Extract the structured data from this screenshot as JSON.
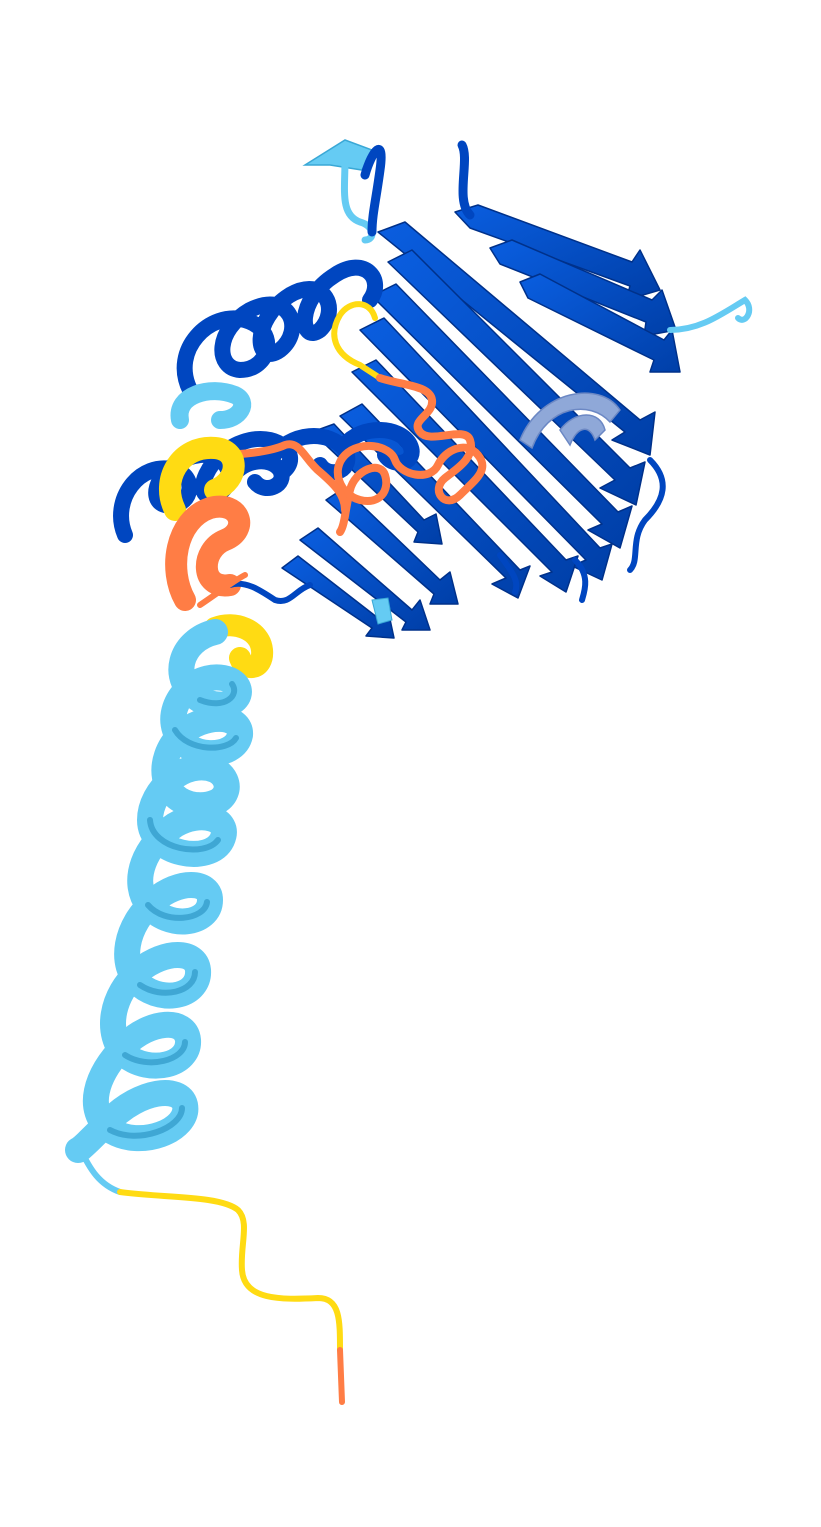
{
  "image": {
    "subject": "protein-structure-cartoon",
    "background_color": "#ffffff",
    "confidence_colors": {
      "very_high": "#0053D6",
      "confident": "#65CBF3",
      "low": "#FFDB13",
      "very_low": "#FF7D45"
    }
  }
}
